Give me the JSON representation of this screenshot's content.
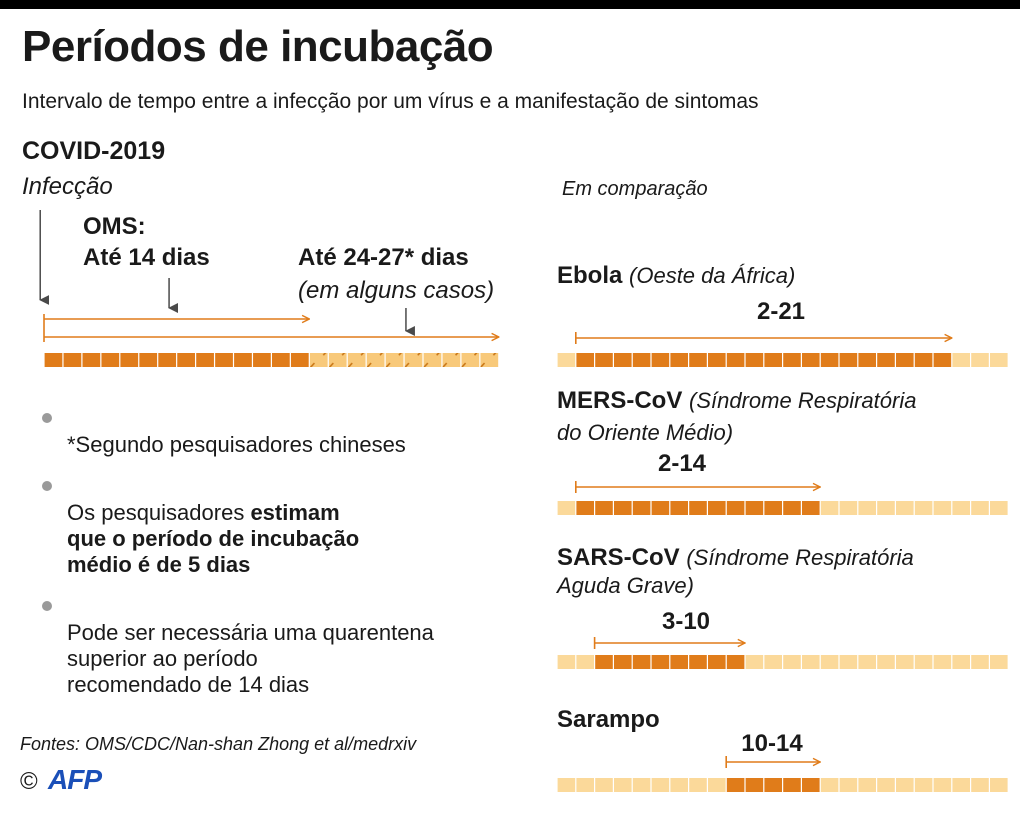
{
  "title": "Períodos de incubação",
  "subtitle": "Intervalo de tempo entre a infecção por um vírus e a manifestação de sintomas",
  "covid": {
    "heading": "COVID-2019",
    "infection_label": "Infecção",
    "oms_line1": "OMS:",
    "oms_line2": "Até 14 dias",
    "extra_line1": "Até 24-27* dias",
    "extra_line2": "(em alguns casos)"
  },
  "bullets": [
    {
      "text": "*Segundo pesquisadores chineses",
      "bold": ""
    },
    {
      "text": "Os pesquisadores ",
      "bold": "estimam\nque o período de incubação\nmédio é de 5 dias"
    },
    {
      "text": "Pode ser necessária uma quarentena\nsuperior ao período\nrecomendado de 14 dias",
      "bold": ""
    }
  ],
  "sources": "Fontes: OMS/CDC/Nan-shan Zhong et al/medrxiv",
  "copyright_symbol": "©",
  "logo_text": "AFP",
  "comparison_label": "Em comparação",
  "colors": {
    "orange": "#e07c1a",
    "orange_pale": "#fbd99a",
    "hatch_bg": "#f8c97a",
    "arrow_dark": "#4a4a4a",
    "bullet_dot": "#9a9a9a"
  },
  "chart_data": {
    "type": "bar",
    "title": "Períodos de incubação",
    "covid_2019": {
      "oms_max_days": 14,
      "extended_max_days": 27,
      "extended_label": "24-27",
      "average_days": 5,
      "scale_days": 24
    },
    "comparisons": {
      "scale_days": 24,
      "items": [
        {
          "name": "Ebola",
          "note": "(Oeste da África)",
          "note_line2": "",
          "min": 2,
          "max": 21,
          "label": "2-21"
        },
        {
          "name": "MERS-CoV",
          "note": "(Síndrome Respiratória",
          "note_line2": "do Oriente Médio)",
          "min": 2,
          "max": 14,
          "label": "2-14"
        },
        {
          "name": "SARS-CoV",
          "note": "(Síndrome Respiratória",
          "note_line2": "Aguda Grave)",
          "min": 3,
          "max": 10,
          "label": "3-10"
        },
        {
          "name": "Sarampo",
          "note": "",
          "note_line2": "",
          "min": 10,
          "max": 14,
          "label": "10-14"
        }
      ]
    }
  }
}
